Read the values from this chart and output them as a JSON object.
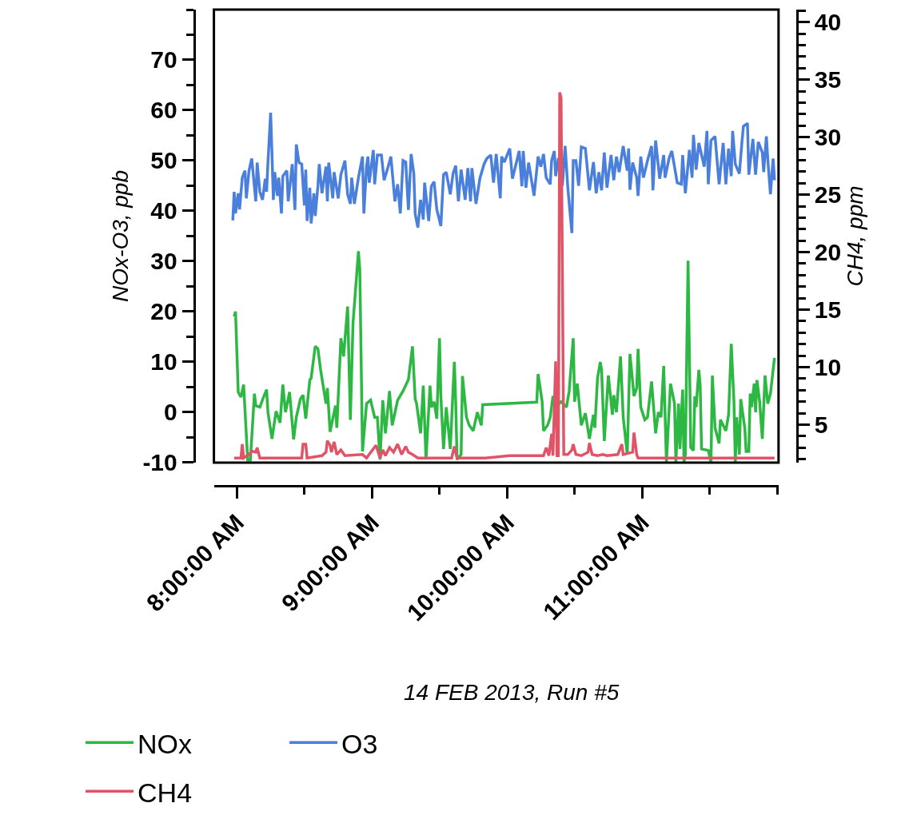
{
  "chart_data": {
    "type": "line",
    "xlabel": "14 FEB 2013, Run #5",
    "ylabel": "NOx-O3, ppb",
    "y2label": "CH4, ppm",
    "legend": "bottom left",
    "xlim": [
      7.83,
      12.01
    ],
    "xticks": [
      {
        "value": 8,
        "label": "8:00:00 AM"
      },
      {
        "value": 8.5,
        "label": null
      },
      {
        "value": 9,
        "label": "9:00:00 AM"
      },
      {
        "value": 9.5,
        "label": null
      },
      {
        "value": 10,
        "label": "10:00:00 AM"
      },
      {
        "value": 10.5,
        "label": null
      },
      {
        "value": 11,
        "label": "11:00:00 AM"
      },
      {
        "value": 11.5,
        "label": null
      },
      {
        "value": 12,
        "label": null
      }
    ],
    "ylim": [
      -10,
      80
    ],
    "yticks": [
      -10,
      0,
      10,
      20,
      30,
      40,
      50,
      60,
      70
    ],
    "y2lim": [
      1.7,
      41.1
    ],
    "y2ticks": [
      5,
      10,
      15,
      20,
      25,
      30,
      35,
      40
    ],
    "series": [
      {
        "name": "NOx",
        "color": "#2db843",
        "x": [
          7.98,
          7.99,
          8.01,
          8.03,
          8.05,
          8.08,
          8.1,
          8.13,
          8.14,
          8.17,
          8.2,
          8.22,
          8.23,
          8.26,
          8.29,
          8.32,
          8.34,
          8.36,
          8.39,
          8.42,
          8.44,
          8.47,
          8.49,
          8.51,
          8.54,
          8.55,
          8.58,
          8.6,
          8.62,
          8.66,
          8.67,
          8.69,
          8.73,
          8.74,
          8.77,
          8.79,
          8.82,
          8.84,
          8.86,
          8.9,
          8.91,
          8.93,
          8.96,
          8.99,
          9.02,
          9.04,
          9.06,
          9.08,
          9.1,
          9.13,
          9.15,
          9.19,
          9.23,
          9.27,
          9.3,
          9.32,
          9.33,
          9.36,
          9.38,
          9.4,
          9.43,
          9.44,
          9.46,
          9.48,
          9.5,
          9.51,
          9.53,
          9.55,
          9.58,
          9.61,
          9.62,
          9.63,
          9.66,
          9.67,
          9.7,
          9.72,
          9.75,
          9.78,
          9.81,
          9.82,
          10.22,
          10.23,
          10.26,
          10.27,
          10.3,
          10.32,
          10.34,
          10.37,
          10.4,
          10.44,
          10.46,
          10.49,
          10.5,
          10.52,
          10.55,
          10.58,
          10.61,
          10.64,
          10.65,
          10.67,
          10.69,
          10.7,
          10.72,
          10.75,
          10.78,
          10.79,
          10.81,
          10.84,
          10.86,
          10.89,
          10.91,
          10.94,
          10.96,
          10.97,
          10.99,
          11.02,
          11.04,
          11.07,
          11.1,
          11.12,
          11.14,
          11.16,
          11.18,
          11.21,
          11.24,
          11.25,
          11.27,
          11.28,
          11.3,
          11.31,
          11.32,
          11.34,
          11.36,
          11.38,
          11.39,
          11.4,
          11.42,
          11.43,
          11.44,
          11.49,
          11.51,
          11.52,
          11.54,
          11.57,
          11.58,
          11.6,
          11.62,
          11.64,
          11.66,
          11.68,
          11.69,
          11.7,
          11.72,
          11.73,
          11.76,
          11.77,
          11.79,
          11.8,
          11.81,
          11.83,
          11.84,
          11.85,
          11.87,
          11.89,
          11.91,
          11.93,
          11.95,
          11.98
        ],
        "values": [
          19,
          20,
          4,
          3,
          5.5,
          -9.5,
          -9.5,
          3.7,
          1.3,
          1,
          3.2,
          4.5,
          0,
          -5.3,
          0.2,
          -2.1,
          5.5,
          0,
          4,
          -5.4,
          -1,
          2.6,
          3.4,
          -1.3,
          6.4,
          6.8,
          13.1,
          12.6,
          8.4,
          1.7,
          4.8,
          -3.9,
          1.3,
          -3.1,
          14.7,
          11.1,
          21,
          -1.5,
          17.8,
          32,
          28.4,
          -7.8,
          1.7,
          2.4,
          -1,
          -1,
          -9.4,
          2.4,
          -4.2,
          4.2,
          -2.6,
          2.4,
          4.2,
          6.5,
          13.1,
          2.6,
          1.8,
          -4.2,
          5.3,
          -9.4,
          5.3,
          1,
          2.1,
          -1.3,
          14.7,
          3.2,
          -7.3,
          1,
          -7.3,
          10,
          2.1,
          -9.4,
          -8.4,
          7.2,
          -1,
          -2.6,
          -3.7,
          0,
          -2.6,
          1.5,
          2,
          7.6,
          2.1,
          -3.7,
          -2.6,
          -1,
          3.2,
          1.3,
          2.1,
          1,
          4.2,
          14.7,
          2.1,
          5.7,
          -2.6,
          -0.2,
          -5.3,
          -0.5,
          -3.1,
          6.8,
          10,
          8.4,
          -5.7,
          7.3,
          -0.5,
          3.4,
          0,
          11.1,
          -1,
          -8.4,
          11.6,
          3.2,
          4.8,
          12.6,
          1,
          -1.5,
          -1,
          6.1,
          -4.2,
          0,
          -1,
          9.2,
          -10,
          5.7,
          1.7,
          -10,
          1.7,
          -7.3,
          4.5,
          -10,
          -8.4,
          30.1,
          -7,
          -7.6,
          3.2,
          1,
          8.4,
          5.3,
          -7.3,
          -7.6,
          -10,
          7.3,
          -3.1,
          -6.2,
          -1.5,
          -2.6,
          -3.7,
          -0.5,
          13.6,
          2.1,
          -10,
          -1,
          -8.4,
          2.6,
          -3.1,
          -7.8,
          -7.8,
          3.7,
          1,
          5.7,
          0,
          6.4,
          2.1,
          -5.3,
          7.3,
          1.7,
          3.7,
          10.8
        ]
      },
      {
        "name": "O3",
        "color": "#4a80dc",
        "x": [
          7.97,
          7.98,
          7.99,
          8.01,
          8.02,
          8.04,
          8.06,
          8.07,
          8.09,
          8.11,
          8.14,
          8.15,
          8.17,
          8.19,
          8.21,
          8.22,
          8.23,
          8.25,
          8.26,
          8.27,
          8.28,
          8.3,
          8.31,
          8.33,
          8.34,
          8.37,
          8.38,
          8.41,
          8.43,
          8.44,
          8.46,
          8.48,
          8.5,
          8.51,
          8.52,
          8.54,
          8.55,
          8.57,
          8.58,
          8.6,
          8.61,
          8.63,
          8.66,
          8.67,
          8.68,
          8.71,
          8.72,
          8.75,
          8.77,
          8.8,
          8.82,
          8.84,
          8.85,
          8.87,
          8.9,
          8.93,
          8.94,
          8.96,
          8.97,
          8.98,
          9.01,
          9.02,
          9.04,
          9.07,
          9.09,
          9.12,
          9.14,
          9.17,
          9.19,
          9.21,
          9.23,
          9.25,
          9.27,
          9.29,
          9.31,
          9.32,
          9.34,
          9.36,
          9.38,
          9.39,
          9.42,
          9.44,
          9.46,
          9.48,
          9.51,
          9.53,
          9.55,
          9.58,
          9.6,
          9.62,
          9.64,
          9.66,
          9.69,
          9.71,
          9.73,
          9.74,
          9.77,
          9.8,
          9.83,
          9.85,
          9.88,
          9.9,
          9.92,
          9.95,
          9.96,
          9.98,
          10.02,
          10.04,
          10.07,
          10.09,
          10.11,
          10.12,
          10.14,
          10.16,
          10.2,
          10.23,
          10.25,
          10.27,
          10.29,
          10.32,
          10.33,
          10.35,
          10.36,
          10.38,
          10.41,
          10.43,
          10.45,
          10.48,
          10.49,
          10.51,
          10.53,
          10.55,
          10.58,
          10.61,
          10.64,
          10.66,
          10.68,
          10.7,
          10.72,
          10.74,
          10.77,
          10.79,
          10.81,
          10.83,
          10.86,
          10.89,
          10.9,
          10.91,
          10.93,
          10.96,
          10.97,
          10.99,
          11.01,
          11.04,
          11.07,
          11.08,
          11.1,
          11.13,
          11.16,
          11.17,
          11.2,
          11.22,
          11.26,
          11.29,
          11.3,
          11.32,
          11.35,
          11.37,
          11.38,
          11.4,
          11.42,
          11.46,
          11.48,
          11.49,
          11.51,
          11.54,
          11.57,
          11.6,
          11.62,
          11.64,
          11.66,
          11.67,
          11.69,
          11.72,
          11.74,
          11.75,
          11.78,
          11.79,
          11.82,
          11.84,
          11.86,
          11.89,
          11.9,
          11.92,
          11.93,
          11.95,
          11.97,
          11.98
        ],
        "values": [
          38.1,
          43.8,
          39.5,
          43.5,
          40.3,
          46.6,
          48,
          42.5,
          48,
          50.4,
          41.9,
          49.6,
          43.8,
          42.2,
          46.4,
          43.8,
          49.6,
          59.5,
          51.3,
          42.2,
          47.7,
          43,
          46.6,
          39.5,
          46.9,
          48,
          41.9,
          49.3,
          40.2,
          53.2,
          49.6,
          49.3,
          41.1,
          48.2,
          38,
          44.6,
          37.5,
          43.5,
          39,
          45,
          49.3,
          43.5,
          48.8,
          41.9,
          49.6,
          42.5,
          47.7,
          42.5,
          47.2,
          50,
          43.3,
          41.4,
          46.6,
          41.4,
          46.6,
          50.8,
          39.5,
          48.8,
          50.8,
          45.6,
          52.1,
          45.3,
          51.1,
          51.1,
          46.1,
          48.8,
          50.8,
          41.9,
          45.3,
          39.5,
          50,
          49.7,
          40.2,
          51.3,
          47.4,
          39.4,
          36.7,
          42.2,
          38.3,
          45.6,
          38,
          44.9,
          45.8,
          40.3,
          37,
          47.2,
          47.7,
          43.3,
          47.4,
          49,
          41.9,
          48.2,
          42.2,
          48.5,
          41.9,
          48.5,
          41.4,
          46.6,
          49.3,
          50.4,
          51.1,
          45.6,
          51.3,
          42.5,
          50.8,
          49.7,
          52.4,
          46.4,
          49.7,
          51.9,
          44.9,
          51.9,
          44.6,
          49.6,
          43,
          50.8,
          48.8,
          51.3,
          46.6,
          45.3,
          50,
          51.9,
          46.9,
          50.5,
          45,
          52.9,
          44.6,
          35.6,
          50,
          50,
          45,
          52.7,
          52.4,
          44.1,
          49.7,
          43.5,
          47.7,
          44.1,
          51.6,
          44.6,
          51.1,
          46.1,
          50.8,
          47.7,
          52.9,
          48,
          52.4,
          44.2,
          49.6,
          46.6,
          43,
          50.8,
          46.6,
          50,
          52.9,
          44.1,
          54,
          46.4,
          51.1,
          46.6,
          50.5,
          51.9,
          45.6,
          45.3,
          51.1,
          43.5,
          52.1,
          46.6,
          55.1,
          48.2,
          53.5,
          48.8,
          55.9,
          45.3,
          54,
          54.8,
          45.3,
          53.5,
          45.3,
          52.4,
          46.9,
          55.9,
          49.3,
          47.4,
          54,
          56.8,
          57.4,
          47.2,
          54.3,
          47.2,
          53.7,
          51.6,
          47.7,
          54.8,
          50.4,
          43.3,
          50.4,
          46.1
        ]
      },
      {
        "name": "CH4",
        "color": "#e05468",
        "axis": "y2",
        "x": [
          7.98,
          8.03,
          8.04,
          8.05,
          8.09,
          8.11,
          8.14,
          8.15,
          8.17,
          8.42,
          8.48,
          8.49,
          8.51,
          8.52,
          8.63,
          8.66,
          8.67,
          8.69,
          8.7,
          8.72,
          8.74,
          8.77,
          8.8,
          8.93,
          8.96,
          9.03,
          9.06,
          9.08,
          9.1,
          9.13,
          9.16,
          9.19,
          9.22,
          9.25,
          9.27,
          9.3,
          9.34,
          9.59,
          9.61,
          9.63,
          9.84,
          10.02,
          10.16,
          10.27,
          10.29,
          10.31,
          10.33,
          10.34,
          10.36,
          10.37,
          10.38,
          10.39,
          10.4,
          10.42,
          10.45,
          10.48,
          10.49,
          10.51,
          10.55,
          10.6,
          10.61,
          10.63,
          10.67,
          10.71,
          10.74,
          10.82,
          10.85,
          10.86,
          10.93,
          10.94,
          10.96,
          10.97,
          11.15,
          11.69,
          11.98
        ],
        "values": [
          2.1,
          2.1,
          3.3,
          2.1,
          2.4,
          2.7,
          2.6,
          3.0,
          2.1,
          2.1,
          2.1,
          3.3,
          3.3,
          2.1,
          2.3,
          2.6,
          3.6,
          3.2,
          2.6,
          3.5,
          2.4,
          2.8,
          2.3,
          2.4,
          2.1,
          3.2,
          2.1,
          2.8,
          2.3,
          3.0,
          2.6,
          3.3,
          2.4,
          3.1,
          2.6,
          2.4,
          2.1,
          2.1,
          3.1,
          2.1,
          2.1,
          2.3,
          2.3,
          2.3,
          3.0,
          2.3,
          4.2,
          2.3,
          10.5,
          2.3,
          2.3,
          33.9,
          33.4,
          2.4,
          2.4,
          2.8,
          3.3,
          2.4,
          2.3,
          2.6,
          3.4,
          2.4,
          2.3,
          2.4,
          2.3,
          2.4,
          3.3,
          2.4,
          2.6,
          4.3,
          2.4,
          2.1,
          2.1,
          2.1,
          2.1
        ]
      }
    ]
  }
}
